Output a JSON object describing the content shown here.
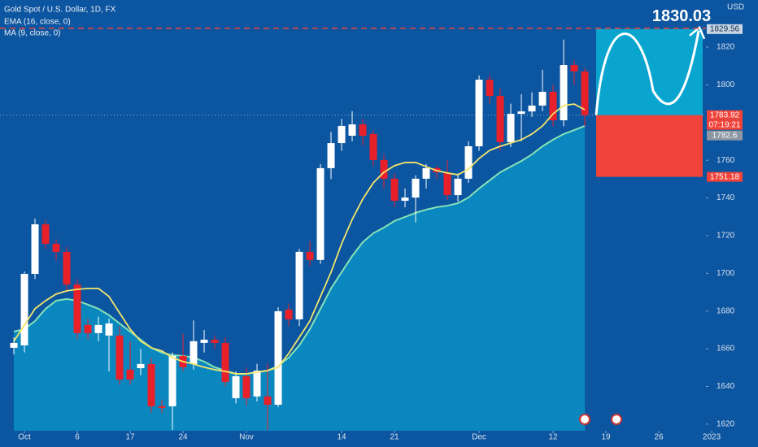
{
  "chart_data": {
    "type": "candlestick",
    "title": "Gold Spot / U.S. Dollar, 1D, FX",
    "currency": "USD",
    "open": [
      1660.5,
      1661.8,
      1699.7,
      1726.0,
      1715.7,
      1711.4,
      1694.1,
      1672.6,
      1668.3,
      1667.0,
      1667.0,
      1648.9,
      1649.7,
      1651.9,
      1629.5,
      1629.5,
      1656.2,
      1651.9,
      1663.1,
      1664.8,
      1663.1,
      1633.8,
      1645.4,
      1634.7,
      1634.7,
      1630.3,
      1680.8,
      1675.6,
      1711.4,
      1707.1,
      1755.8,
      1769.1,
      1773.0,
      1779.0,
      1773.9,
      1760.1,
      1750.2,
      1738.5,
      1740.2,
      1750.2,
      1755.8,
      1753.6,
      1741.5,
      1750.2,
      1767.4,
      1802.7,
      1794.1,
      1769.6,
      1784.6,
      1785.9,
      1789.0,
      1796.3,
      1781.2,
      1810.5,
      1807.1
    ],
    "high": [
      1666,
      1701,
      1729,
      1728,
      1718,
      1714,
      1697,
      1676,
      1677,
      1676,
      1672,
      1664,
      1660,
      1655,
      1633,
      1658,
      1668,
      1675,
      1670,
      1667,
      1666,
      1648,
      1650,
      1652,
      1652,
      1682,
      1684,
      1713,
      1717,
      1758,
      1775,
      1782,
      1786,
      1782,
      1776,
      1763,
      1753,
      1745,
      1752,
      1758,
      1757,
      1760,
      1753,
      1770,
      1805,
      1805,
      1798,
      1790,
      1795,
      1796,
      1808,
      1800,
      1824,
      1813,
      1809
    ],
    "low": [
      1657,
      1658,
      1697,
      1713,
      1707,
      1690,
      1665,
      1665,
      1664,
      1648,
      1641,
      1641,
      1646,
      1626,
      1626,
      1617,
      1648,
      1649,
      1658,
      1660,
      1640,
      1631,
      1630,
      1632,
      1617,
      1629,
      1672,
      1672,
      1704,
      1705,
      1750,
      1765,
      1770,
      1768,
      1757,
      1745,
      1735,
      1735,
      1727,
      1745,
      1750,
      1739,
      1738,
      1748,
      1765,
      1790,
      1765,
      1767,
      1770,
      1783,
      1786,
      1778,
      1778,
      1800,
      1778
    ],
    "close": [
      1663.1,
      1699.7,
      1726.0,
      1715.7,
      1711.4,
      1694.1,
      1668.3,
      1668.3,
      1672.6,
      1673.4,
      1643.7,
      1643.7,
      1651.9,
      1629.5,
      1628.6,
      1656.2,
      1650.2,
      1664.0,
      1664.8,
      1663.1,
      1642.4,
      1645.4,
      1633.8,
      1648.4,
      1630.3,
      1679.9,
      1675.6,
      1711.4,
      1707.1,
      1755.8,
      1769.1,
      1778.2,
      1779.0,
      1773.0,
      1760.1,
      1750.2,
      1738.5,
      1740.2,
      1750.2,
      1755.8,
      1753.6,
      1741.5,
      1750.2,
      1767.4,
      1802.7,
      1794.1,
      1769.6,
      1784.6,
      1785.9,
      1789.0,
      1796.3,
      1781.2,
      1810.5,
      1807.1,
      1783.9
    ],
    "up_color": "#ffffff",
    "down_color": "#e8202a",
    "series": [
      {
        "name": "EMA (16, close, 0)",
        "color": "#86e3b6",
        "fill": "#0b87bf",
        "values": [
          1669.1,
          1670.4,
          1674.7,
          1681.2,
          1685.5,
          1686.4,
          1685.5,
          1683.4,
          1681.2,
          1677.8,
          1673.4,
          1669.1,
          1664.8,
          1660.5,
          1657.9,
          1656.6,
          1656.2,
          1655.3,
          1653.2,
          1650.2,
          1648.4,
          1646.7,
          1646.7,
          1647.6,
          1648.4,
          1651.0,
          1655.3,
          1661.8,
          1670.4,
          1681.2,
          1692.0,
          1700.6,
          1709.2,
          1716.5,
          1721.3,
          1724.3,
          1727.8,
          1729.9,
          1732.1,
          1733.8,
          1735.1,
          1735.9,
          1737.2,
          1740.2,
          1745.0,
          1749.3,
          1753.6,
          1756.6,
          1759.6,
          1763.1,
          1767.4,
          1770.9,
          1773.9,
          1776.0,
          1778.2
        ]
      },
      {
        "name": "MA (9, close, 0)",
        "color": "#f3e66a",
        "values": [
          1664.0,
          1672.6,
          1681.2,
          1685.5,
          1689.0,
          1690.7,
          1691.5,
          1692.0,
          1692.0,
          1687.7,
          1679.0,
          1670.4,
          1664.0,
          1660.5,
          1658.8,
          1655.3,
          1653.2,
          1651.9,
          1650.2,
          1648.9,
          1648.0,
          1646.7,
          1646.7,
          1647.6,
          1648.4,
          1650.2,
          1657.5,
          1666.1,
          1674.7,
          1687.7,
          1700.6,
          1715.7,
          1728.6,
          1739.4,
          1748.0,
          1753.6,
          1757.1,
          1758.8,
          1758.8,
          1756.6,
          1754.5,
          1753.2,
          1752.3,
          1755.3,
          1760.9,
          1765.2,
          1767.4,
          1769.1,
          1770.9,
          1773.9,
          1778.2,
          1784.6,
          1789.0,
          1789.8,
          1786.8
        ]
      }
    ],
    "xlim": [
      -1.31,
      65.46
    ],
    "xticks": [
      {
        "value": 1,
        "label": "Oct"
      },
      6,
      {
        "value": 11,
        "label": "17"
      },
      {
        "value": 16,
        "label": "24"
      },
      {
        "value": 22,
        "label": "Nov"
      },
      {
        "value": 31,
        "label": "14"
      },
      {
        "value": 36,
        "label": "21"
      },
      {
        "value": 44,
        "label": "Dec"
      },
      {
        "value": 51,
        "label": "12"
      },
      {
        "value": 56,
        "label": "19"
      },
      {
        "value": 61,
        "label": "26"
      },
      {
        "value": 66,
        "label": "2023"
      }
    ],
    "ylim": [
      1616.5,
      1845
    ],
    "yticks": [
      1620,
      1640,
      1660,
      1680,
      1700,
      1720,
      1740,
      1760,
      1800,
      1820
    ],
    "position": {
      "target": 1829.56,
      "entry": 1783.92,
      "stop": 1751.18,
      "countdown": "07:19:21",
      "prev_close": 1782.6
    },
    "level": {
      "value": 1830.03,
      "label": "1830.03",
      "color": "#f0433a"
    }
  }
}
